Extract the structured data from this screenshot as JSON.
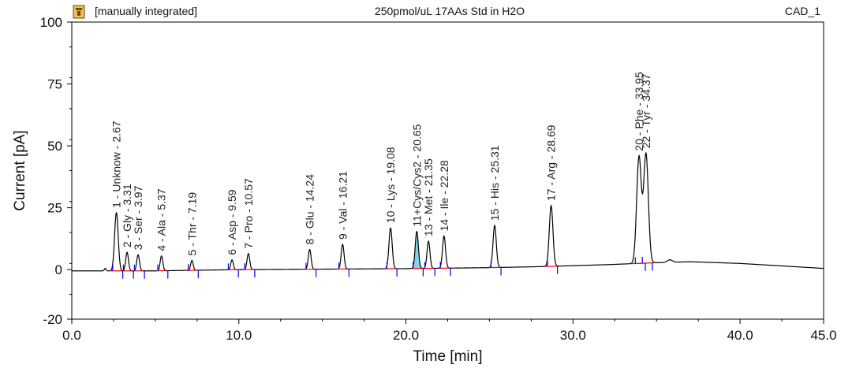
{
  "header": {
    "left": "[manually integrated]",
    "center": "250pmol/uL 17AAs Std in H2O",
    "right": "CAD_1",
    "icon": "application-icon"
  },
  "chart_data": {
    "type": "line",
    "title": "250pmol/uL 17AAs Std in H2O",
    "xlabel": "Time [min]",
    "ylabel": "Current [pA]",
    "xlim": [
      0,
      45
    ],
    "ylim": [
      -20,
      100
    ],
    "xticks": [
      0,
      10,
      20,
      30,
      40,
      45
    ],
    "xtick_labels": [
      "0.0",
      "10.0",
      "20.0",
      "30.0",
      "40.0",
      "45.0"
    ],
    "yticks": [
      -20,
      0,
      25,
      50,
      75,
      100
    ],
    "ytick_labels": [
      "-20",
      "0",
      "25",
      "50",
      "75",
      "100"
    ],
    "colors": {
      "trace": "#000000",
      "baseline": "#ff0000",
      "marker": "#0000ff",
      "fill": "#7fd7e6"
    },
    "baseline": [
      [
        0,
        -0.5
      ],
      [
        5,
        -0.5
      ],
      [
        10,
        0
      ],
      [
        15,
        0.2
      ],
      [
        20,
        0.4
      ],
      [
        25,
        0.8
      ],
      [
        28,
        1.2
      ],
      [
        32,
        2
      ],
      [
        35,
        2.8
      ],
      [
        37,
        3.2
      ],
      [
        40,
        2.5
      ],
      [
        45,
        0.5
      ]
    ],
    "minor_peaks": [
      {
        "rt": 2.0,
        "height": 1.0,
        "width": 0.05
      },
      {
        "rt": 35.8,
        "height": 1.0,
        "width": 0.15
      }
    ],
    "peaks": [
      {
        "id": 1,
        "name": "Unknow",
        "rt": 2.67,
        "height": 23.5,
        "label": "1 - Unknow - 2.67"
      },
      {
        "id": 2,
        "name": "Gly",
        "rt": 3.31,
        "height": 7.5,
        "label": "2 - Gly - 3.31"
      },
      {
        "id": 3,
        "name": "Ser",
        "rt": 3.97,
        "height": 6.5,
        "label": "3 - Ser - 3.97"
      },
      {
        "id": 4,
        "name": "Ala",
        "rt": 5.37,
        "height": 6.0,
        "label": "4 - Ala - 5.37"
      },
      {
        "id": 5,
        "name": "Thr",
        "rt": 7.19,
        "height": 4.0,
        "label": "5 - Thr - 7.19"
      },
      {
        "id": 6,
        "name": "Asp",
        "rt": 9.59,
        "height": 4.0,
        "label": "6 - Asp - 9.59"
      },
      {
        "id": 7,
        "name": "Pro",
        "rt": 10.57,
        "height": 6.5,
        "label": "7 - Pro - 10.57"
      },
      {
        "id": 8,
        "name": "Glu",
        "rt": 14.24,
        "height": 8.0,
        "label": "8 - Glu - 14.24"
      },
      {
        "id": 9,
        "name": "Val",
        "rt": 16.21,
        "height": 10.0,
        "label": "9 - Val - 16.21"
      },
      {
        "id": 10,
        "name": "Lys",
        "rt": 19.08,
        "height": 16.5,
        "label": "10 - Lys - 19.08"
      },
      {
        "id": 11,
        "name": "Cys",
        "rt": 20.65,
        "height": 15.0,
        "label": "11+Cys/Cys2 - 20.65"
      },
      {
        "id": 13,
        "name": "Met",
        "rt": 21.35,
        "height": 11.0,
        "label": "13 - Met - 21.35"
      },
      {
        "id": 14,
        "name": "Ile",
        "rt": 22.28,
        "height": 13.0,
        "label": "14 - Ile - 22.28"
      },
      {
        "id": 15,
        "name": "His",
        "rt": 25.31,
        "height": 17.0,
        "label": "15 - His - 25.31"
      },
      {
        "id": 17,
        "name": "Arg",
        "rt": 28.69,
        "height": 24.5,
        "label": "17 - Arg - 28.69"
      },
      {
        "id": 20,
        "name": "Phe",
        "rt": 33.95,
        "height": 43.0,
        "label": "20 - Phe - 33.95"
      },
      {
        "id": 22,
        "name": "Tyr",
        "rt": 34.37,
        "height": 44.0,
        "label": "22 - Tyr - 34.37"
      }
    ]
  }
}
